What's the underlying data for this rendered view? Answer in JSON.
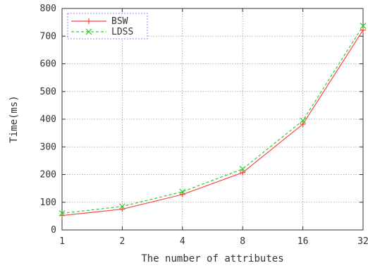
{
  "chart_data": {
    "type": "line",
    "title": "",
    "xlabel": "The number of attributes",
    "ylabel": "Time(ms)",
    "x_scale": "log2",
    "categories": [
      "1",
      "2",
      "4",
      "8",
      "16",
      "32"
    ],
    "x": [
      1,
      2,
      4,
      8,
      16,
      32
    ],
    "ylim": [
      0,
      800
    ],
    "yticks": [
      0,
      100,
      200,
      300,
      400,
      500,
      600,
      700,
      800
    ],
    "grid": true,
    "legend_position": "top-left",
    "series": [
      {
        "name": "BSW",
        "color": "#ff4444",
        "line_style": "solid",
        "marker": "plus",
        "values": [
          52,
          75,
          128,
          207,
          382,
          722
        ]
      },
      {
        "name": "LDSS",
        "color": "#33cc33",
        "line_style": "dashed",
        "marker": "x",
        "values": [
          60,
          85,
          138,
          220,
          395,
          737
        ]
      }
    ]
  }
}
